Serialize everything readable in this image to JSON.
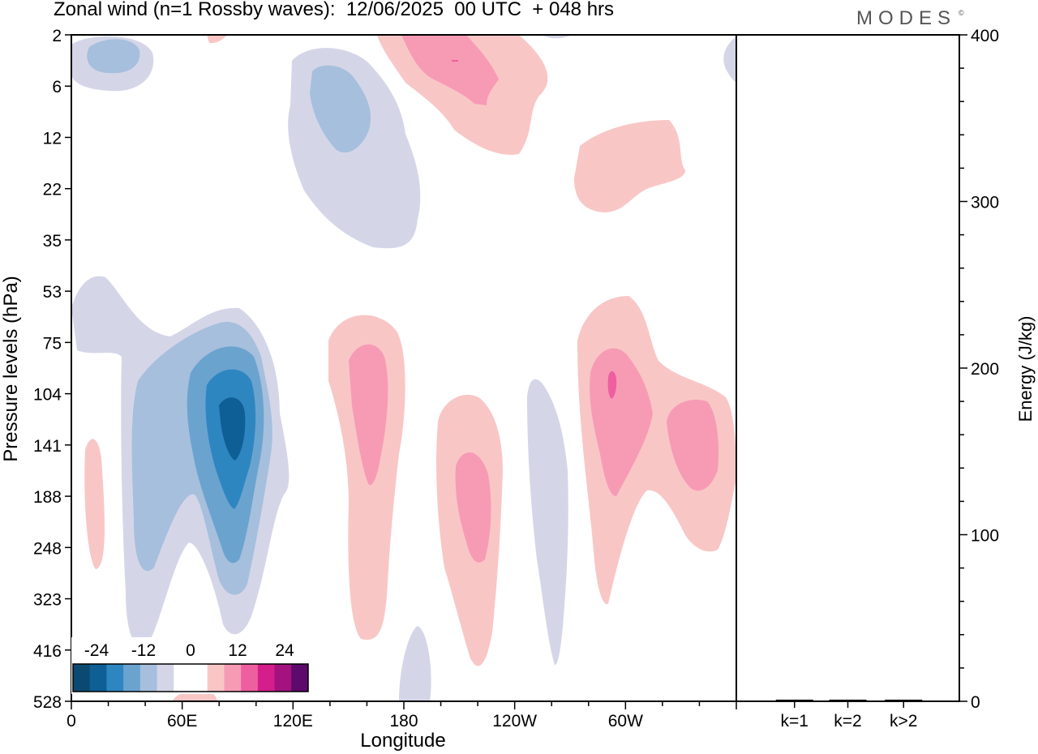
{
  "title": "Zonal wind (n=1 Rossby waves):  12/06/2025  00 UTC  + 048 hrs",
  "brand": "MODES",
  "brand_mark": "©",
  "colors": {
    "neg4": "#0a4a70",
    "neg3": "#0d5f96",
    "neg2": "#2e86c1",
    "neg1": "#6ba3cf",
    "neg0": "#a6bfdc",
    "negw": "#d4d6e8",
    "posw": "#f9c6c6",
    "pos1": "#f79bb5",
    "pos2": "#ee5fa0",
    "pos3": "#d41e8a",
    "pos4": "#a3127e",
    "pos5": "#5c0a6b"
  },
  "chart_data": [
    {
      "type": "heatmap",
      "title": "Zonal wind (n=1 Rossby waves):  12/06/2025  00 UTC  + 048 hrs",
      "xlabel": "Longitude",
      "ylabel": "Pressure levels (hPa)",
      "x_ticks": [
        "0",
        "60E",
        "120E",
        "180",
        "120W",
        "60W"
      ],
      "y_ticks": [
        "2",
        "6",
        "12",
        "22",
        "35",
        "53",
        "75",
        "104",
        "141",
        "188",
        "248",
        "323",
        "416",
        "528"
      ],
      "colorbar": {
        "tick_labels": [
          "-24",
          "-12",
          "0",
          "12",
          "24"
        ],
        "levels": [
          -30,
          -25,
          -20,
          -15,
          -10,
          -5,
          0,
          5,
          10,
          15,
          20,
          25,
          30
        ]
      },
      "features": [
        {
          "lon": 20,
          "p": 3,
          "value": -10
        },
        {
          "lon": 150,
          "p": 8,
          "value": -10
        },
        {
          "lon": 210,
          "p": 4,
          "value": 14
        },
        {
          "lon": 300,
          "p": 18,
          "value": 6
        },
        {
          "lon": 87,
          "p": 120,
          "value": -27
        },
        {
          "lon": 160,
          "p": 110,
          "value": 12
        },
        {
          "lon": 220,
          "p": 170,
          "value": 12
        },
        {
          "lon": 290,
          "p": 104,
          "value": 18
        },
        {
          "lon": 340,
          "p": 130,
          "value": 12
        },
        {
          "lon": 265,
          "p": 250,
          "value": -6
        },
        {
          "lon": 15,
          "p": 200,
          "value": 5
        }
      ]
    },
    {
      "type": "bar",
      "categories": [
        "k=1",
        "k=2",
        "k>2"
      ],
      "values": [
        0.5,
        0.5,
        0.5
      ],
      "ylabel": "Energy (J/kg)",
      "ylim": [
        0,
        400
      ],
      "y_ticks": [
        "0",
        "100",
        "200",
        "300",
        "400"
      ]
    }
  ]
}
